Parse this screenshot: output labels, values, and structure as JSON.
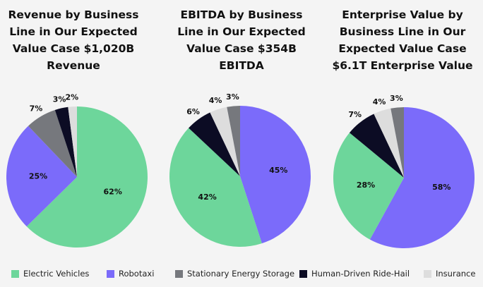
{
  "colors": {
    "Electric Vehicles": "#6dd69b",
    "Robotaxi": "#7b6bfa",
    "Stationary Energy Storage": "#76787d",
    "Human-Driven Ride-Hail": "#0c0c24",
    "Insurance": "#dddddd"
  },
  "chart_data": [
    {
      "type": "pie",
      "title": "Revenue by Business Line in Our Expected Value Case $1,020B Revenue",
      "title_lines": [
        "Revenue by Business",
        "Line in Our Expected",
        "Value Case $1,020B",
        "Revenue"
      ],
      "slices": [
        {
          "label": "Electric Vehicles",
          "value": 62,
          "text": "62%"
        },
        {
          "label": "Robotaxi",
          "value": 25,
          "text": "25%"
        },
        {
          "label": "Stationary Energy Storage",
          "value": 7,
          "text": "7%"
        },
        {
          "label": "Human-Driven Ride-Hail",
          "value": 3,
          "text": "3%"
        },
        {
          "label": "Insurance",
          "value": 2,
          "text": "2%"
        }
      ]
    },
    {
      "type": "pie",
      "title": "EBITDA by Business Line in Our Expected Value Case $354B EBITDA",
      "title_lines": [
        "EBITDA by Business",
        "Line in Our Expected",
        "Value Case $354B",
        "EBITDA"
      ],
      "slices": [
        {
          "label": "Robotaxi",
          "value": 45,
          "text": "45%"
        },
        {
          "label": "Electric Vehicles",
          "value": 42,
          "text": "42%"
        },
        {
          "label": "Human-Driven Ride-Hail",
          "value": 6,
          "text": "6%"
        },
        {
          "label": "Insurance",
          "value": 4,
          "text": "4%"
        },
        {
          "label": "Stationary Energy Storage",
          "value": 3,
          "text": "3%"
        }
      ]
    },
    {
      "type": "pie",
      "title": "Enterprise Value by Business Line in Our Expected Value Case $6.1T Enterprise Value",
      "title_lines": [
        "Enterprise Value by",
        "Business Line in Our",
        "Expected Value Case",
        "$6.1T Enterprise Value"
      ],
      "slices": [
        {
          "label": "Robotaxi",
          "value": 58,
          "text": "58%"
        },
        {
          "label": "Electric Vehicles",
          "value": 28,
          "text": "28%"
        },
        {
          "label": "Human-Driven Ride-Hail",
          "value": 7,
          "text": "7%"
        },
        {
          "label": "Insurance",
          "value": 4,
          "text": "4%"
        },
        {
          "label": "Stationary Energy Storage",
          "value": 3,
          "text": "3%"
        }
      ]
    }
  ],
  "legend": {
    "position": "bottom",
    "items": [
      "Electric Vehicles",
      "Robotaxi",
      "Stationary Energy Storage",
      "Human-Driven Ride-Hail",
      "Insurance"
    ]
  }
}
